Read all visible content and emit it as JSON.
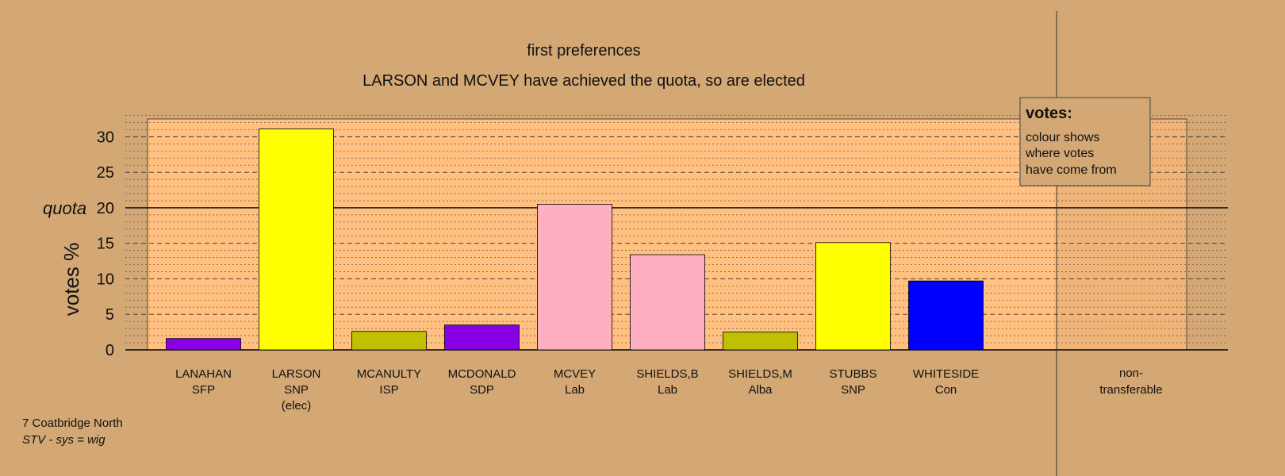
{
  "colors": {
    "background": "#d4a874",
    "plot_background": "#ffc080",
    "SFP": "#8a00e6",
    "SNP": "#ffff00",
    "ISP": "#c0c000",
    "SDP": "#8a00e6",
    "Lab": "#ffb0c0",
    "Alba": "#c0c000",
    "Con": "#0000ff"
  },
  "chart_data": {
    "type": "bar",
    "title": "first preferences",
    "subtitle": "LARSON and MCVEY have achieved the quota, so are elected",
    "ylabel": "votes %",
    "quota_label": "quota",
    "quota": 20,
    "ylim": [
      0,
      32.5
    ],
    "yticks": [
      0,
      5,
      10,
      15,
      20,
      25,
      30
    ],
    "grid": true,
    "categories": [
      {
        "name": "LANAHAN",
        "party": "SFP",
        "note": ""
      },
      {
        "name": "LARSON",
        "party": "SNP",
        "note": "(elec)"
      },
      {
        "name": "MCANULTY",
        "party": "ISP",
        "note": ""
      },
      {
        "name": "MCDONALD",
        "party": "SDP",
        "note": ""
      },
      {
        "name": "MCVEY",
        "party": "Lab",
        "note": ""
      },
      {
        "name": "SHIELDS,B",
        "party": "Lab",
        "note": ""
      },
      {
        "name": "SHIELDS,M",
        "party": "Alba",
        "note": ""
      },
      {
        "name": "STUBBS",
        "party": "SNP",
        "note": ""
      },
      {
        "name": "WHITESIDE",
        "party": "Con",
        "note": ""
      }
    ],
    "values": [
      1.6,
      31.1,
      2.6,
      3.5,
      20.5,
      13.4,
      2.5,
      15.1,
      9.7
    ],
    "nontransferable": {
      "label_line1": "non-",
      "label_line2": "transferable",
      "value": 0
    },
    "legend": {
      "title": "votes:",
      "lines": [
        "colour shows",
        "where votes",
        "have come from"
      ],
      "placement": "top-right"
    }
  },
  "footer": {
    "ward": "7 Coatbridge North",
    "system": "STV - sys = wig"
  }
}
